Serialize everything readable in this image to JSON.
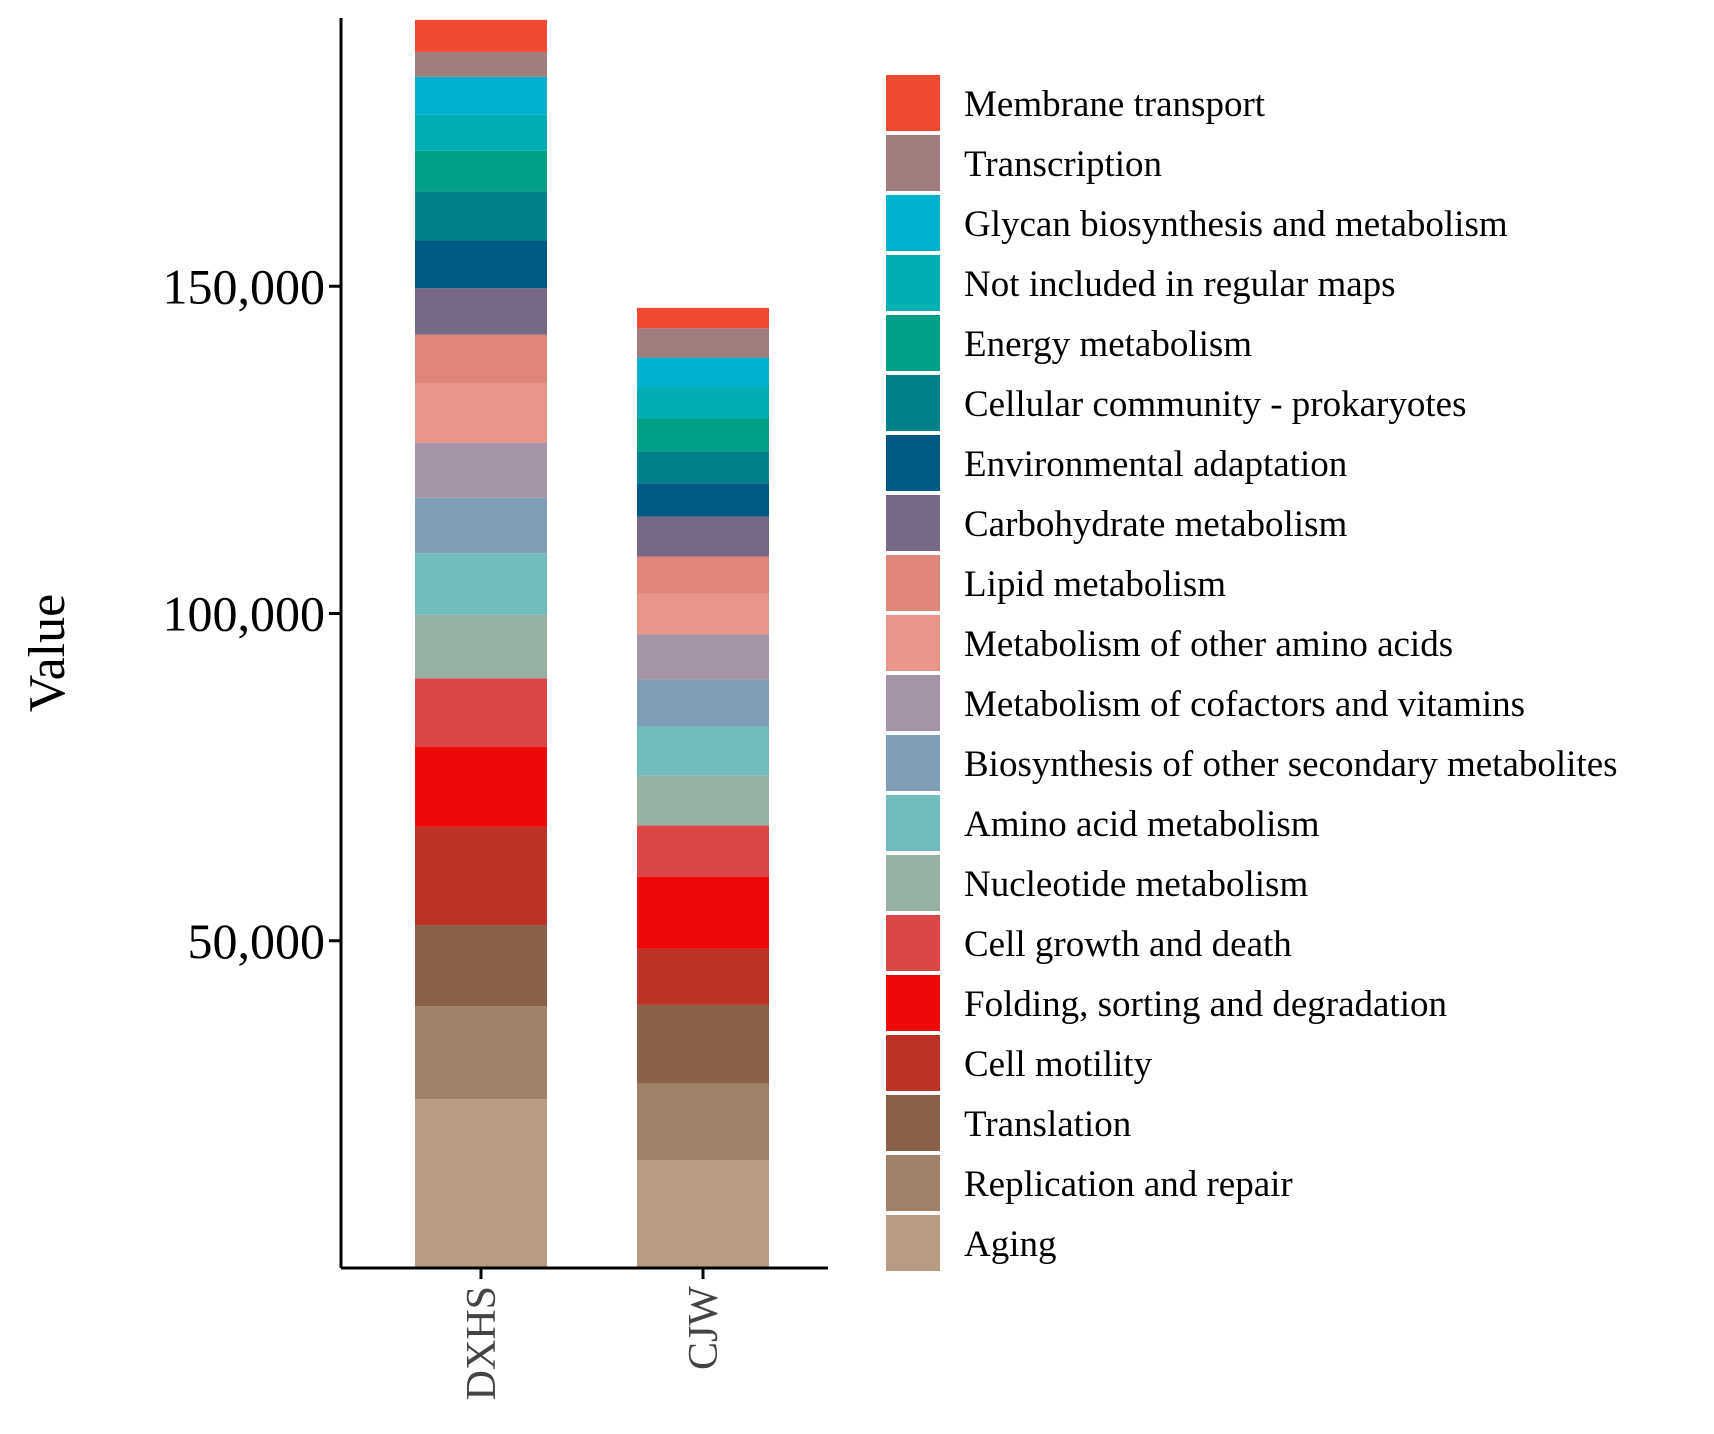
{
  "chart_data": {
    "type": "bar",
    "stacked": true,
    "title": "",
    "xlabel": "",
    "ylabel": "Value",
    "ylim": [
      0,
      191000
    ],
    "yticks": [
      50000,
      100000,
      150000
    ],
    "ytick_labels": [
      "50,000",
      "100,000",
      "150,000"
    ],
    "categories": [
      "DXHS",
      "CJW"
    ],
    "legend_position": "right",
    "series": [
      {
        "name": "Aging",
        "color": "#b89c82",
        "values": [
          25800,
          16500
        ]
      },
      {
        "name": "Replication and repair",
        "color": "#a08066",
        "values": [
          14200,
          11700
        ]
      },
      {
        "name": "Translation",
        "color": "#8a6048",
        "values": [
          12400,
          12000
        ]
      },
      {
        "name": "Cell motility",
        "color": "#bd3226",
        "values": [
          15000,
          8600
        ]
      },
      {
        "name": "Folding, sorting and degradation",
        "color": "#ee0808",
        "values": [
          12200,
          11000
        ]
      },
      {
        "name": "Cell growth and death",
        "color": "#dd4646",
        "values": [
          10500,
          7800
        ]
      },
      {
        "name": "Nucleotide metabolism",
        "color": "#97b1a2",
        "values": [
          9700,
          7600
        ]
      },
      {
        "name": "Amino acid metabolism",
        "color": "#71bcbc",
        "values": [
          9400,
          7500
        ]
      },
      {
        "name": "Biosynthesis of other secondary metabolites",
        "color": "#7e9db6",
        "values": [
          8500,
          7200
        ]
      },
      {
        "name": "Metabolism of cofactors and vitamins",
        "color": "#a594a8",
        "values": [
          8400,
          6900
        ]
      },
      {
        "name": "Metabolism of other amino acids",
        "color": "#e9958a",
        "values": [
          9000,
          6200
        ]
      },
      {
        "name": "Lipid metabolism",
        "color": "#df8678",
        "values": [
          7500,
          5700
        ]
      },
      {
        "name": "Carbohydrate metabolism",
        "color": "#776886",
        "values": [
          7100,
          6100
        ]
      },
      {
        "name": "Environmental adaptation",
        "color": "#005a84",
        "values": [
          7300,
          5100
        ]
      },
      {
        "name": "Cellular community - prokaryotes",
        "color": "#008189",
        "values": [
          7500,
          4900
        ]
      },
      {
        "name": "Energy metabolism",
        "color": "#00a087",
        "values": [
          6200,
          5000
        ]
      },
      {
        "name": "Not included in regular maps",
        "color": "#00aeb4",
        "values": [
          5500,
          4800
        ]
      },
      {
        "name": "Glycan biosynthesis and metabolism",
        "color": "#00b2d0",
        "values": [
          5800,
          4500
        ]
      },
      {
        "name": "Transcription",
        "color": "#a07c7c",
        "values": [
          3800,
          4500
        ]
      },
      {
        "name": "Membrane transport",
        "color": "#f24a32",
        "values": [
          4900,
          3100
        ]
      }
    ]
  }
}
